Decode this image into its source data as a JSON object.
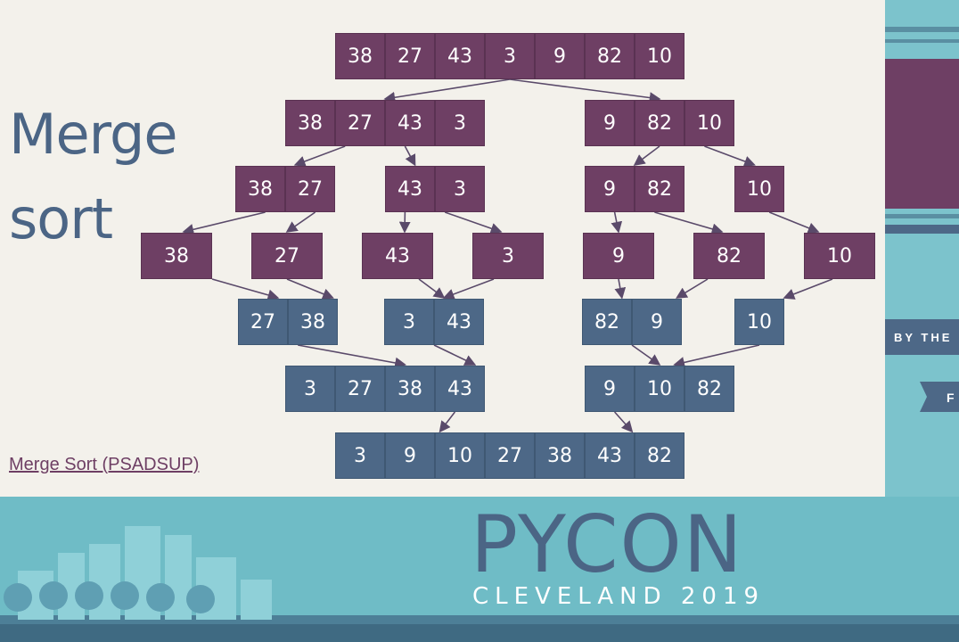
{
  "slide": {
    "title_line1": "Merge",
    "title_line2": "sort",
    "source_link": "Merge Sort (PSADSUP)"
  },
  "branding": {
    "event_name": "PYCON",
    "event_location": "CLEVELAND 2019",
    "side_text": "BY THE",
    "side_badge": "F"
  },
  "colors": {
    "split_box": "#6e3f64",
    "merge_box": "#4d6887",
    "arrow": "#5a4a6a",
    "slide_bg": "#f3f1eb",
    "title": "#4b6585"
  },
  "diagram": {
    "levels": [
      {
        "kind": "split",
        "groups": [
          [
            38,
            27,
            43,
            3,
            9,
            82,
            10
          ]
        ]
      },
      {
        "kind": "split",
        "groups": [
          [
            38,
            27,
            43,
            3
          ],
          [
            9,
            82,
            10
          ]
        ]
      },
      {
        "kind": "split",
        "groups": [
          [
            38,
            27
          ],
          [
            43,
            3
          ],
          [
            9,
            82
          ],
          [
            10
          ]
        ]
      },
      {
        "kind": "split",
        "groups": [
          [
            38
          ],
          [
            27
          ],
          [
            43
          ],
          [
            3
          ],
          [
            9
          ],
          [
            82
          ],
          [
            10
          ]
        ]
      },
      {
        "kind": "merge",
        "groups": [
          [
            27,
            38
          ],
          [
            3,
            43
          ],
          [
            82,
            9
          ],
          [
            10
          ]
        ]
      },
      {
        "kind": "merge",
        "groups": [
          [
            3,
            27,
            38,
            43
          ],
          [
            9,
            10,
            82
          ]
        ]
      },
      {
        "kind": "merge",
        "groups": [
          [
            3,
            9,
            10,
            27,
            38,
            43,
            82
          ]
        ]
      }
    ]
  }
}
